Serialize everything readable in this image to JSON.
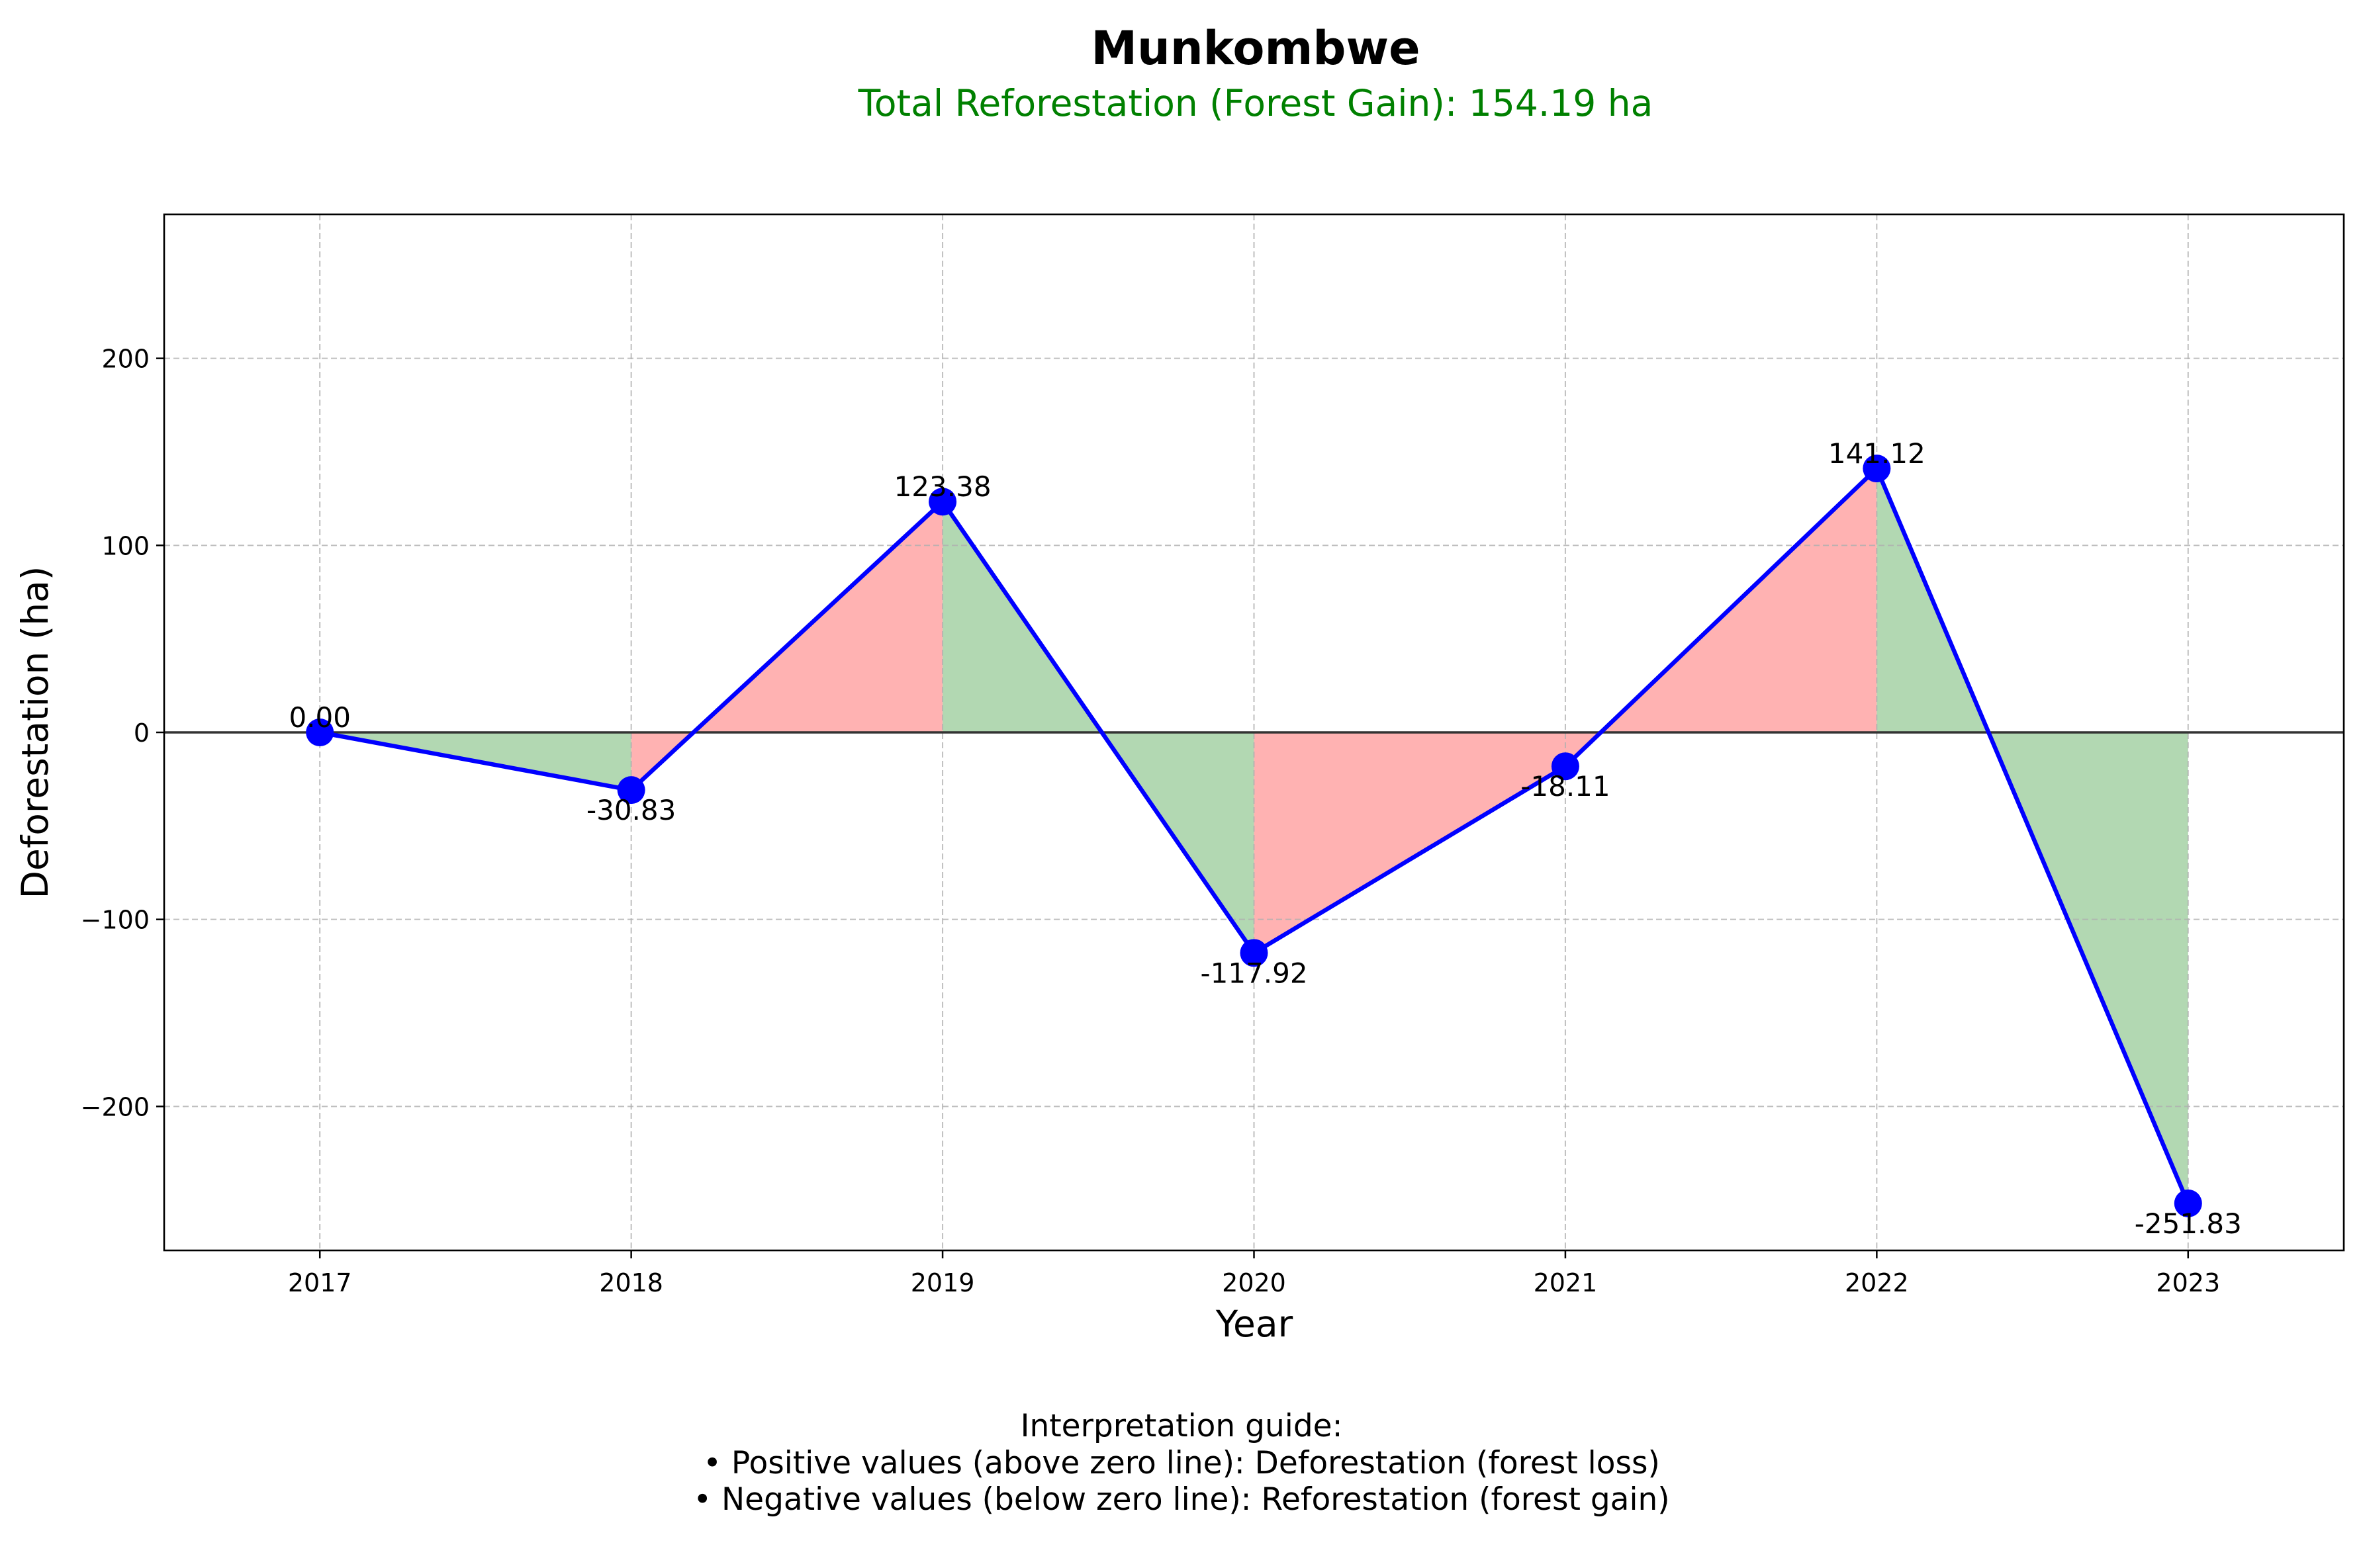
{
  "chart_data": {
    "type": "line",
    "title": "Munkombwe",
    "subtitle": "Total Reforestation (Forest Gain): 154.19 ha",
    "xlabel": "Year",
    "ylabel": "Deforestation (ha)",
    "categories": [
      "2017",
      "2018",
      "2019",
      "2020",
      "2021",
      "2022",
      "2023"
    ],
    "values": [
      0.0,
      -30.83,
      123.38,
      -117.92,
      -18.11,
      141.12,
      -251.83
    ],
    "data_labels": [
      "0.00",
      "-30.83",
      "123.38",
      "-117.92",
      "-18.11",
      "141.12",
      "-251.83"
    ],
    "ylim": [
      -277,
      277
    ],
    "yticks": [
      200,
      100,
      0,
      -100,
      -200
    ],
    "ytick_labels": [
      "200",
      "100",
      "0",
      "−100",
      "−200"
    ],
    "grid": true,
    "colors": {
      "line": "#0000ff",
      "marker": "#0000ff",
      "gain_fill": "#b2d8b2",
      "loss_fill": "#ffb2b2",
      "subtitle": "#008000",
      "zero_line": "#333333"
    }
  },
  "guide": {
    "heading": "Interpretation guide:",
    "line1": "• Positive values (above zero line): Deforestation (forest loss)",
    "line2": "• Negative values (below zero line): Reforestation (forest gain)"
  }
}
